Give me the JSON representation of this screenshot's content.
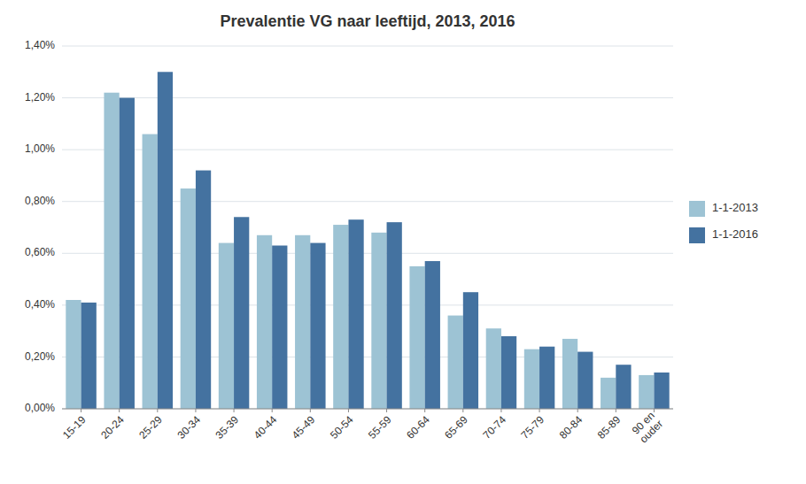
{
  "chart_data": {
    "type": "bar",
    "title": "Prevalentie VG naar leeftijd, 2013, 2016",
    "categories": [
      "15-19",
      "20-24",
      "25-29",
      "30-34",
      "35-39",
      "40-44",
      "45-49",
      "50-54",
      "55-59",
      "60-64",
      "65-69",
      "70-74",
      "75-79",
      "80-84",
      "85-89",
      "90 en\nouder"
    ],
    "series": [
      {
        "name": "1-1-2013",
        "color": "#9DC3D4",
        "values": [
          0.0042,
          0.0122,
          0.0106,
          0.0085,
          0.0064,
          0.0067,
          0.0067,
          0.0071,
          0.0068,
          0.0055,
          0.0036,
          0.0031,
          0.0023,
          0.0027,
          0.0012,
          0.0013
        ]
      },
      {
        "name": "1-1-2016",
        "color": "#4472A0",
        "values": [
          0.0041,
          0.012,
          0.013,
          0.0092,
          0.0074,
          0.0063,
          0.0064,
          0.0073,
          0.0072,
          0.0057,
          0.0045,
          0.0028,
          0.0024,
          0.0022,
          0.0017,
          0.0014
        ]
      }
    ],
    "ylim": [
      0,
      0.014
    ],
    "yticks": [
      {
        "value": 0.0,
        "label": "0,00%"
      },
      {
        "value": 0.002,
        "label": "0,20%"
      },
      {
        "value": 0.004,
        "label": "0,40%"
      },
      {
        "value": 0.006,
        "label": "0,60%"
      },
      {
        "value": 0.008,
        "label": "0,80%"
      },
      {
        "value": 0.01,
        "label": "1,00%"
      },
      {
        "value": 0.012,
        "label": "1,20%"
      },
      {
        "value": 0.014,
        "label": "1,40%"
      }
    ],
    "grid": true,
    "legend": "right"
  }
}
